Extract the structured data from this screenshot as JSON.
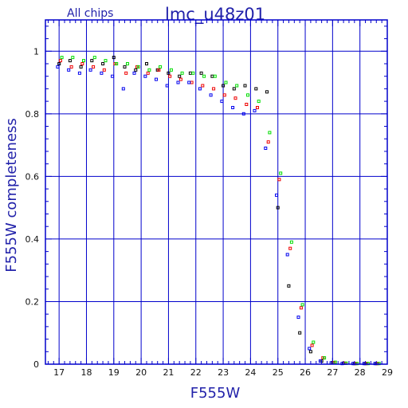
{
  "header": {
    "left_label": "All chips",
    "title": "lmc_u48z01"
  },
  "colors": {
    "frame": "#0000cc",
    "grid": "#0000cc",
    "label_text": "#2222aa",
    "tick_text": "#111111",
    "series_black": "#000000",
    "series_red": "#ee0000",
    "series_green": "#00dd00",
    "series_blue": "#0000ee"
  },
  "chart_data": {
    "type": "scatter",
    "title": "lmc_u48z01",
    "subtitle": "All chips",
    "xlabel": "F555W",
    "ylabel": "F555W completeness",
    "xlim": [
      16.5,
      29.0
    ],
    "ylim": [
      0,
      1.1
    ],
    "xticks": [
      17,
      18,
      19,
      20,
      21,
      22,
      23,
      24,
      25,
      26,
      27,
      28,
      29
    ],
    "yticks": [
      0,
      0.2,
      0.4,
      0.6,
      0.8,
      1
    ],
    "ytick_labels": [
      "0",
      "0.2",
      "0.4",
      "0.6",
      "0.8",
      "1"
    ],
    "grid": true,
    "marker": "open-square",
    "series": [
      {
        "key": "black",
        "x": [
          17.0,
          17.4,
          17.8,
          18.2,
          18.6,
          19.0,
          19.4,
          19.8,
          20.2,
          20.6,
          21.0,
          21.4,
          21.8,
          22.2,
          22.6,
          23.0,
          23.4,
          23.8,
          24.2,
          24.6,
          25.0,
          25.4,
          25.8,
          26.2,
          26.6,
          27.0,
          27.4,
          27.8,
          28.2,
          28.6
        ],
        "y": [
          0.96,
          0.97,
          0.95,
          0.97,
          0.96,
          0.98,
          0.95,
          0.94,
          0.96,
          0.94,
          0.93,
          0.92,
          0.93,
          0.93,
          0.92,
          0.89,
          0.88,
          0.89,
          0.88,
          0.87,
          0.5,
          0.25,
          0.1,
          0.04,
          0.01,
          0.005,
          0.003,
          0.002,
          0.002,
          0.002
        ]
      },
      {
        "key": "red",
        "x": [
          17.05,
          17.45,
          17.85,
          18.25,
          18.65,
          19.05,
          19.45,
          19.85,
          20.25,
          20.65,
          21.05,
          21.45,
          21.85,
          22.25,
          22.65,
          23.05,
          23.45,
          23.85,
          24.25,
          24.65,
          25.05,
          25.45,
          25.85,
          26.25,
          26.65,
          27.05,
          27.45,
          27.85,
          28.25,
          28.65
        ],
        "y": [
          0.97,
          0.95,
          0.96,
          0.95,
          0.94,
          0.96,
          0.93,
          0.95,
          0.93,
          0.94,
          0.92,
          0.91,
          0.9,
          0.89,
          0.88,
          0.86,
          0.85,
          0.83,
          0.82,
          0.71,
          0.59,
          0.37,
          0.18,
          0.06,
          0.02,
          0.005,
          0.003,
          0.002,
          0.002,
          0.002
        ]
      },
      {
        "key": "green",
        "x": [
          17.1,
          17.5,
          17.9,
          18.3,
          18.7,
          19.1,
          19.5,
          19.9,
          20.3,
          20.7,
          21.1,
          21.5,
          21.9,
          22.3,
          22.7,
          23.1,
          23.5,
          23.9,
          24.3,
          24.7,
          25.1,
          25.5,
          25.9,
          26.3,
          26.7,
          27.1,
          27.5,
          27.9,
          28.3,
          28.7
        ],
        "y": [
          0.98,
          0.98,
          0.97,
          0.98,
          0.97,
          0.96,
          0.96,
          0.95,
          0.94,
          0.95,
          0.94,
          0.93,
          0.93,
          0.92,
          0.92,
          0.9,
          0.89,
          0.86,
          0.84,
          0.74,
          0.61,
          0.39,
          0.19,
          0.07,
          0.02,
          0.006,
          0.003,
          0.002,
          0.002,
          0.002
        ]
      },
      {
        "key": "blue",
        "x": [
          16.95,
          17.35,
          17.75,
          18.15,
          18.55,
          18.95,
          19.35,
          19.75,
          20.15,
          20.55,
          20.95,
          21.35,
          21.75,
          22.15,
          22.55,
          22.95,
          23.35,
          23.75,
          24.15,
          24.55,
          24.95,
          25.35,
          25.75,
          26.15,
          26.55,
          26.95,
          27.35,
          27.75,
          28.15,
          28.55
        ],
        "y": [
          0.95,
          0.94,
          0.93,
          0.94,
          0.93,
          0.92,
          0.88,
          0.93,
          0.92,
          0.91,
          0.89,
          0.9,
          0.9,
          0.88,
          0.86,
          0.84,
          0.82,
          0.8,
          0.81,
          0.69,
          0.54,
          0.35,
          0.15,
          0.05,
          0.01,
          0.004,
          0.002,
          0.002,
          0.002,
          0.002
        ]
      }
    ]
  }
}
